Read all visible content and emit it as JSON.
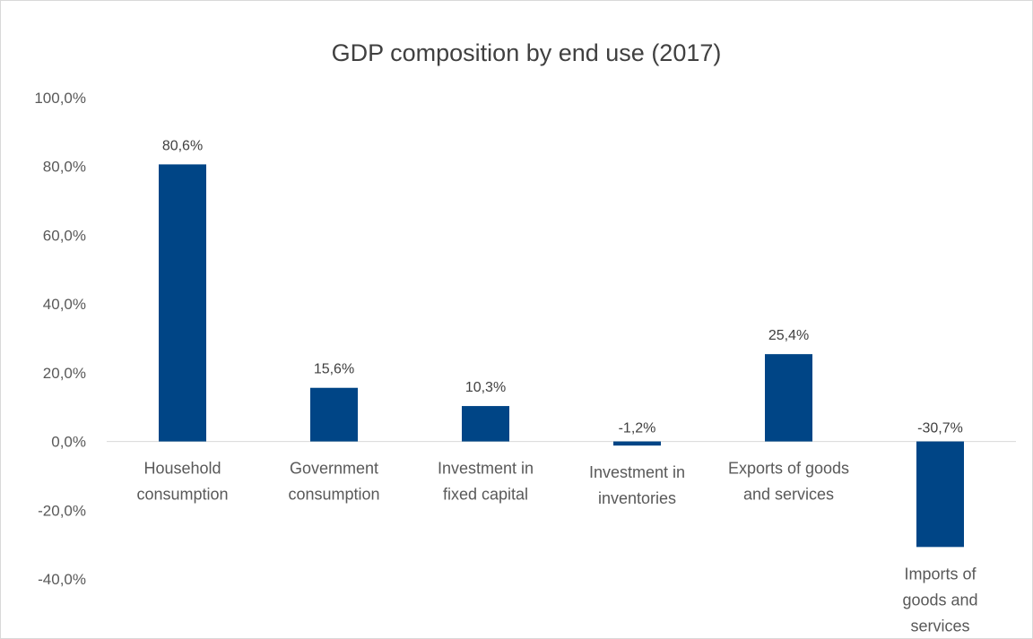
{
  "chart_data": {
    "type": "bar",
    "title": "GDP composition by end use (2017)",
    "xlabel": "",
    "ylabel": "",
    "categories": [
      [
        "Household",
        "consumption"
      ],
      [
        "Government",
        "consumption"
      ],
      [
        "Investment in",
        "fixed capital"
      ],
      [
        "Investment in",
        "inventories"
      ],
      [
        "Exports of goods",
        "and services"
      ],
      [
        "Imports of",
        "goods and",
        "services"
      ]
    ],
    "values": [
      80.6,
      15.6,
      10.3,
      -1.2,
      25.4,
      -30.7
    ],
    "data_labels": [
      "80,6%",
      "15,6%",
      "10,3%",
      "-1,2%",
      "25,4%",
      "-30,7%"
    ],
    "ylim": [
      -40,
      100
    ],
    "yticks": [
      100,
      80,
      60,
      40,
      20,
      0,
      -20,
      -40
    ],
    "ytick_labels": [
      "100,0%",
      "80,0%",
      "60,0%",
      "40,0%",
      "20,0%",
      "0,0%",
      "-20,0%",
      "-40,0%"
    ],
    "grid": false,
    "legend": "none",
    "bar_color": "#004586",
    "axis_color": "#d9d9d9"
  }
}
